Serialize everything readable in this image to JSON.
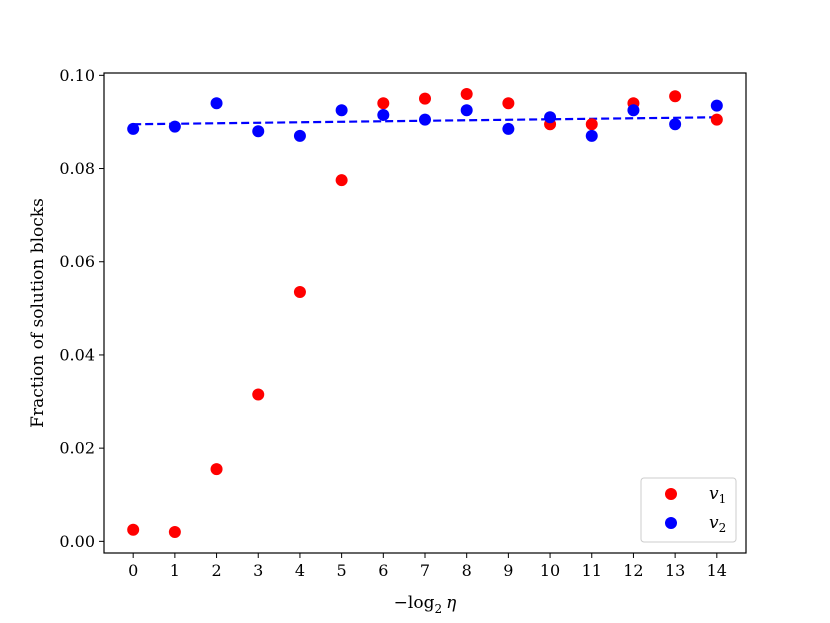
{
  "chart_data": {
    "type": "scatter",
    "title": "",
    "xlabel": "−log",
    "xlabel_sub": "2",
    "xlabel_var": "η",
    "ylabel": "Fraction of solution blocks",
    "xlim": [
      -0.7,
      14.7
    ],
    "ylim": [
      -0.0025,
      0.1005
    ],
    "xticks": [
      0,
      1,
      2,
      3,
      4,
      5,
      6,
      7,
      8,
      9,
      10,
      11,
      12,
      13,
      14
    ],
    "xtick_labels": [
      "0",
      "1",
      "2",
      "3",
      "4",
      "5",
      "6",
      "7",
      "8",
      "9",
      "10",
      "11",
      "12",
      "13",
      "14"
    ],
    "yticks": [
      0,
      0.02,
      0.04,
      0.06,
      0.08,
      0.1
    ],
    "ytick_labels": [
      "0.00",
      "0.02",
      "0.04",
      "0.06",
      "0.08",
      "0.10"
    ],
    "grid": false,
    "legend_position": "bottom-right",
    "series": [
      {
        "name": "v",
        "name_sub": "1",
        "color": "#ff0000",
        "x": [
          0,
          1,
          2,
          3,
          4,
          5,
          6,
          7,
          8,
          9,
          10,
          11,
          12,
          13,
          14
        ],
        "y": [
          0.0025,
          0.002,
          0.0155,
          0.0315,
          0.0535,
          0.0775,
          0.094,
          0.095,
          0.096,
          0.094,
          0.0895,
          0.0895,
          0.094,
          0.0955,
          0.0905
        ]
      },
      {
        "name": "v",
        "name_sub": "2",
        "color": "#0000ff",
        "x": [
          0,
          1,
          2,
          3,
          4,
          5,
          6,
          7,
          8,
          9,
          10,
          11,
          12,
          13,
          14
        ],
        "y": [
          0.0885,
          0.089,
          0.094,
          0.088,
          0.087,
          0.0925,
          0.0915,
          0.0905,
          0.0925,
          0.0885,
          0.091,
          0.087,
          0.0925,
          0.0895,
          0.0935
        ]
      }
    ],
    "fit_line": {
      "style": "dashed",
      "color": "#0000ff",
      "x": [
        0,
        14
      ],
      "y": [
        0.0895,
        0.091
      ]
    }
  }
}
